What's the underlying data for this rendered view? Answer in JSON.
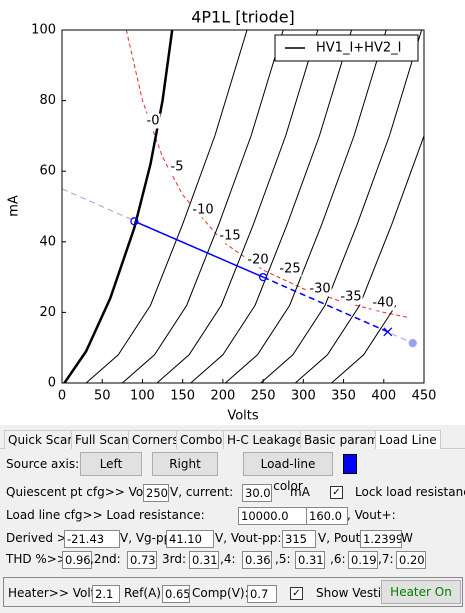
{
  "chart_data": {
    "type": "line",
    "title": "4P1L [triode]",
    "xlabel": "Volts",
    "ylabel": "mA",
    "xlim": [
      0,
      450
    ],
    "ylim": [
      0,
      100
    ],
    "xticks": [
      0,
      50,
      100,
      150,
      200,
      250,
      300,
      350,
      400,
      450
    ],
    "yticks": [
      0,
      20,
      40,
      60,
      80,
      100
    ],
    "grid": false,
    "legend": "upper right",
    "series": [
      {
        "name": "HV1_I+HV2_I",
        "color": "#000000",
        "curves": [
          {
            "label": "-0",
            "x": [
              3,
              30,
              60,
              90,
              110,
              125,
              137
            ],
            "values": [
              0,
              9,
              24,
              44,
              62,
              80,
              100
            ]
          },
          {
            "label": "-5",
            "x": [
              30,
              70,
              110,
              150,
              190,
              230
            ],
            "values": [
              0,
              8,
              22,
              45,
              70,
              100
            ]
          },
          {
            "label": "-10",
            "x": [
              75,
              115,
              155,
              195,
              235,
              275
            ],
            "values": [
              0,
              8,
              22,
              45,
              70,
              100
            ]
          },
          {
            "label": "-15",
            "x": [
              118,
              158,
              198,
              238,
              278,
              318
            ],
            "values": [
              0,
              8,
              22,
              45,
              70,
              100
            ]
          },
          {
            "label": "-20",
            "x": [
              160,
              200,
              240,
              280,
              320,
              360
            ],
            "values": [
              0,
              8,
              22,
              45,
              70,
              100
            ]
          },
          {
            "label": "-25",
            "x": [
              203,
              243,
              283,
              323,
              363,
              403
            ],
            "values": [
              0,
              8,
              22,
              45,
              70,
              100
            ]
          },
          {
            "label": "-30",
            "x": [
              247,
              287,
              327,
              367,
              407,
              447
            ],
            "values": [
              0,
              8,
              22,
              45,
              70,
              100
            ]
          },
          {
            "label": "-35",
            "x": [
              290,
              330,
              370,
              410,
              450
            ],
            "values": [
              0,
              8,
              22,
              45,
              70
            ]
          },
          {
            "label": "-40",
            "x": [
              335,
              375,
              415
            ],
            "values": [
              0,
              8,
              22
            ]
          }
        ]
      }
    ],
    "load_line": {
      "color": "#0000ff",
      "x": [
        90,
        250
      ],
      "values": [
        45.8,
        30
      ]
    },
    "load_line_ext": {
      "color": "#0000ff",
      "x": [
        250,
        405
      ],
      "values": [
        30,
        14.5
      ]
    },
    "load_line_full": {
      "color": "#a0a0f0",
      "x": [
        0,
        436
      ],
      "values": [
        55,
        11.3
      ]
    },
    "dissipation": {
      "color": "#e03020",
      "x": [
        80,
        100,
        125,
        150,
        200,
        250,
        300,
        350,
        400,
        430
      ],
      "values": [
        100,
        80,
        64,
        53.3,
        40,
        32,
        26.7,
        22.9,
        20,
        18.6
      ]
    }
  },
  "ui": {
    "tabs": [
      "Quick Scan",
      "Full Scan",
      "Corners",
      "Combo",
      "H-C Leakage",
      "Basic params",
      "Load Line"
    ],
    "source": {
      "label": "Source axis:",
      "left": "Left",
      "right": "Right",
      "color_button": "Load-line color"
    },
    "quiescent": {
      "label": "Quiescent pt cfg>>  Volt:",
      "volt": "250",
      "current_label": "V, current:",
      "current": "30.0",
      "unit": "mA",
      "lock": "Lock load resistance"
    },
    "load": {
      "label": "Load line cfg>>  Load resistance:",
      "resistance": "10000.0",
      "ohms": "Ohms, Vout+:",
      "vout": "160.0"
    },
    "derived": {
      "label": "Derived >>  Vg:",
      "vg": "-21.43",
      "vgpp_label": "V, Vg-pp:",
      "vgpp": "41.10",
      "voutpp_label": "V, Vout-pp:",
      "voutpp": "315",
      "pout_label": "V, Pout:",
      "pout": "1.2399",
      "unit": "W"
    },
    "thd": {
      "label": "THD %>>",
      "total": "0.96",
      "h2_label": ",2nd:",
      "h2": "0.73",
      "h3_label": "3rd:",
      "h3": "0.31",
      "h4_label": ",4:",
      "h4": "0.36",
      "h5_label": ",5:",
      "h5": "0.31",
      "h6_label": ",6:",
      "h6": "0.19",
      "h7_label": ",7:",
      "h7": "0.20"
    },
    "heater": {
      "label": "Heater>>  Volt:",
      "volt": "2.1",
      "ref_label": "Ref(A):",
      "ref": "0.65",
      "comp_label": "Comp(V):",
      "comp": "0.7",
      "show": "Show Vesti",
      "button": "Heater On"
    }
  }
}
